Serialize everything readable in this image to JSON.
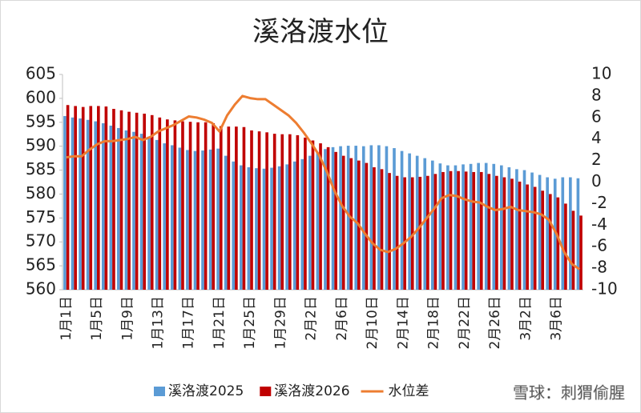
{
  "chart_data": {
    "type": "bar_line",
    "title": "溪洛渡水位",
    "categories": [
      "1月1日",
      null,
      null,
      null,
      "1月5日",
      null,
      null,
      null,
      "1月9日",
      null,
      null,
      null,
      "1月13日",
      null,
      null,
      null,
      "1月17日",
      null,
      null,
      null,
      "1月21日",
      null,
      null,
      null,
      "1月25日",
      null,
      null,
      null,
      "1月29日",
      null,
      null,
      null,
      "2月2日",
      null,
      null,
      null,
      "2月6日",
      null,
      null,
      null,
      "2月10日",
      null,
      null,
      null,
      "2月14日",
      null,
      null,
      null,
      "2月18日",
      null,
      null,
      null,
      "2月22日",
      null,
      null,
      null,
      "2月26日",
      null,
      null,
      null,
      "3月2日",
      null,
      null,
      null,
      "3月6日",
      null,
      null,
      null
    ],
    "series": [
      {
        "name": "溪洛渡2025",
        "color": "#5b9bd5",
        "kind": "bar",
        "values": [
          596.3,
          596.0,
          595.8,
          595.5,
          595.2,
          594.8,
          594.3,
          593.8,
          593.3,
          593.0,
          592.6,
          592.0,
          591.3,
          590.6,
          590.2,
          589.7,
          589.2,
          589.0,
          589.1,
          589.3,
          589.5,
          588.0,
          586.8,
          586.0,
          585.6,
          585.4,
          585.3,
          585.5,
          585.8,
          586.2,
          586.8,
          587.3,
          588.0,
          588.7,
          589.4,
          589.8,
          590.0,
          590.1,
          590.1,
          590.0,
          590.2,
          590.2,
          590.0,
          589.6,
          589.0,
          588.5,
          588.0,
          587.5,
          587.0,
          586.4,
          586.0,
          586.0,
          586.2,
          586.3,
          586.5,
          586.5,
          586.3,
          586.0,
          585.6,
          585.2,
          585.0,
          584.5,
          584.0,
          583.5,
          583.2,
          583.5,
          583.5,
          583.3
        ]
      },
      {
        "name": "溪洛渡2026",
        "color": "#c00000",
        "kind": "bar",
        "values": [
          598.6,
          598.4,
          598.2,
          598.4,
          598.4,
          598.3,
          597.8,
          597.5,
          597.2,
          597.0,
          596.8,
          596.5,
          596.0,
          595.6,
          595.4,
          595.2,
          595.1,
          595.0,
          595.0,
          594.8,
          594.2,
          594.1,
          594.1,
          594.0,
          593.3,
          593.1,
          592.9,
          592.6,
          592.5,
          592.5,
          592.3,
          591.8,
          591.2,
          590.6,
          589.8,
          588.8,
          588.0,
          587.5,
          587.0,
          586.5,
          585.6,
          585.2,
          584.4,
          583.8,
          583.5,
          583.5,
          583.6,
          583.8,
          584.2,
          584.6,
          584.8,
          584.8,
          584.7,
          584.6,
          584.6,
          584.2,
          583.8,
          583.5,
          583.2,
          582.6,
          582.0,
          581.5,
          580.7,
          580.0,
          579.3,
          578.0,
          576.5,
          575.5
        ]
      },
      {
        "name": "水位差",
        "color": "#ed7d31",
        "kind": "line",
        "axis": "y2",
        "values": [
          2.3,
          2.4,
          2.4,
          3.0,
          3.5,
          3.8,
          3.8,
          3.9,
          4.0,
          4.2,
          3.9,
          4.2,
          4.7,
          5.0,
          5.3,
          5.7,
          6.1,
          6.0,
          5.8,
          5.5,
          4.7,
          6.2,
          7.2,
          8.0,
          7.8,
          7.7,
          7.7,
          7.2,
          6.7,
          6.2,
          5.5,
          4.6,
          3.6,
          2.5,
          1.0,
          -0.8,
          -2.2,
          -3.2,
          -3.8,
          -4.8,
          -5.7,
          -6.3,
          -6.5,
          -6.2,
          -5.7,
          -5.1,
          -4.3,
          -3.4,
          -2.5,
          -1.5,
          -1.2,
          -1.3,
          -1.6,
          -1.8,
          -1.9,
          -2.3,
          -2.6,
          -2.5,
          -2.3,
          -2.6,
          -2.7,
          -2.8,
          -3.0,
          -3.5,
          -4.8,
          -6.5,
          -7.6,
          -8.1
        ]
      }
    ],
    "ylim": [
      560,
      605
    ],
    "yticks": [
      560,
      565,
      570,
      575,
      580,
      585,
      590,
      595,
      600,
      605
    ],
    "y2lim": [
      -10,
      10
    ],
    "y2ticks": [
      -10,
      -8,
      -6,
      -4,
      -2,
      0,
      2,
      4,
      6,
      8,
      10
    ],
    "legend": "bottom",
    "watermark": "雪球：刺猬偷腥"
  }
}
